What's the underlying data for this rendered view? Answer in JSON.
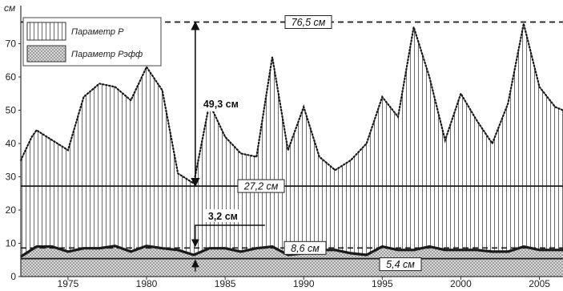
{
  "chart_data": {
    "type": "area",
    "y_unit": "см",
    "xlim": [
      1972,
      2006.5
    ],
    "ylim": [
      0,
      80
    ],
    "x_ticks": [
      1975,
      1980,
      1985,
      1990,
      1995,
      2000,
      2005
    ],
    "y_ticks": [
      0,
      10,
      20,
      30,
      40,
      50,
      60,
      70
    ],
    "grid": false,
    "legend_position": "top-left",
    "series": [
      {
        "name": "Параметр P",
        "pattern": "vertical-hatch",
        "line_style": "dotted",
        "x": [
          1972,
          1972.7,
          1973,
          1974,
          1975,
          1976,
          1977,
          1978,
          1979,
          1980,
          1981,
          1982,
          1983,
          1984,
          1985,
          1986,
          1987,
          1988,
          1989,
          1990,
          1991,
          1992,
          1993,
          1994,
          1995,
          1996,
          1997,
          1998,
          1999,
          2000,
          2001,
          2002,
          2003,
          2004,
          2005,
          2006,
          2006.5
        ],
        "values": [
          35,
          42,
          44,
          41,
          38,
          54,
          58,
          57,
          53,
          63,
          56,
          31,
          28,
          52,
          42,
          37,
          36,
          66,
          38,
          51,
          36,
          32,
          35,
          40,
          54,
          48,
          75,
          60,
          41,
          55,
          47,
          40,
          52,
          76,
          57,
          51,
          50
        ]
      },
      {
        "name": "Параметр Рэфф",
        "pattern": "cross-hatch",
        "line_style": "solid",
        "x": [
          1972,
          1973,
          1974,
          1975,
          1976,
          1977,
          1978,
          1979,
          1980,
          1981,
          1982,
          1983,
          1984,
          1985,
          1986,
          1987,
          1988,
          1989,
          1990,
          1991,
          1992,
          1993,
          1994,
          1995,
          1996,
          1997,
          1998,
          1999,
          2000,
          2001,
          2002,
          2003,
          2004,
          2005,
          2006,
          2006.5
        ],
        "values": [
          6,
          9,
          9,
          7.5,
          8.5,
          8.5,
          9.2,
          7.5,
          9.2,
          8.5,
          8,
          6.5,
          8.5,
          8.5,
          7.5,
          8.5,
          9,
          6.5,
          7,
          8,
          8,
          7,
          6.5,
          9,
          8,
          8,
          9,
          8,
          8,
          8,
          7.5,
          7.5,
          9,
          8,
          8,
          8
        ]
      }
    ],
    "reference_lines": [
      {
        "value": 76.5,
        "style": "dashed",
        "label": "76,5 см"
      },
      {
        "value": 27.2,
        "style": "solid",
        "label": "27,2 см"
      },
      {
        "value": 8.6,
        "style": "dashed",
        "label": "8,6 см"
      },
      {
        "value": 5.4,
        "style": "solid",
        "label": "5,4 см"
      }
    ],
    "annotations": [
      {
        "label": "49,3 см",
        "x": 1983,
        "from": 27.2,
        "to": 76.5
      },
      {
        "label": "3,2 см",
        "x": 1983,
        "from": 5.4,
        "to": 8.6
      }
    ]
  },
  "colors": {
    "line": "#1a1a1a",
    "hatch": "#6e6e6e",
    "background": "#ffffff"
  }
}
